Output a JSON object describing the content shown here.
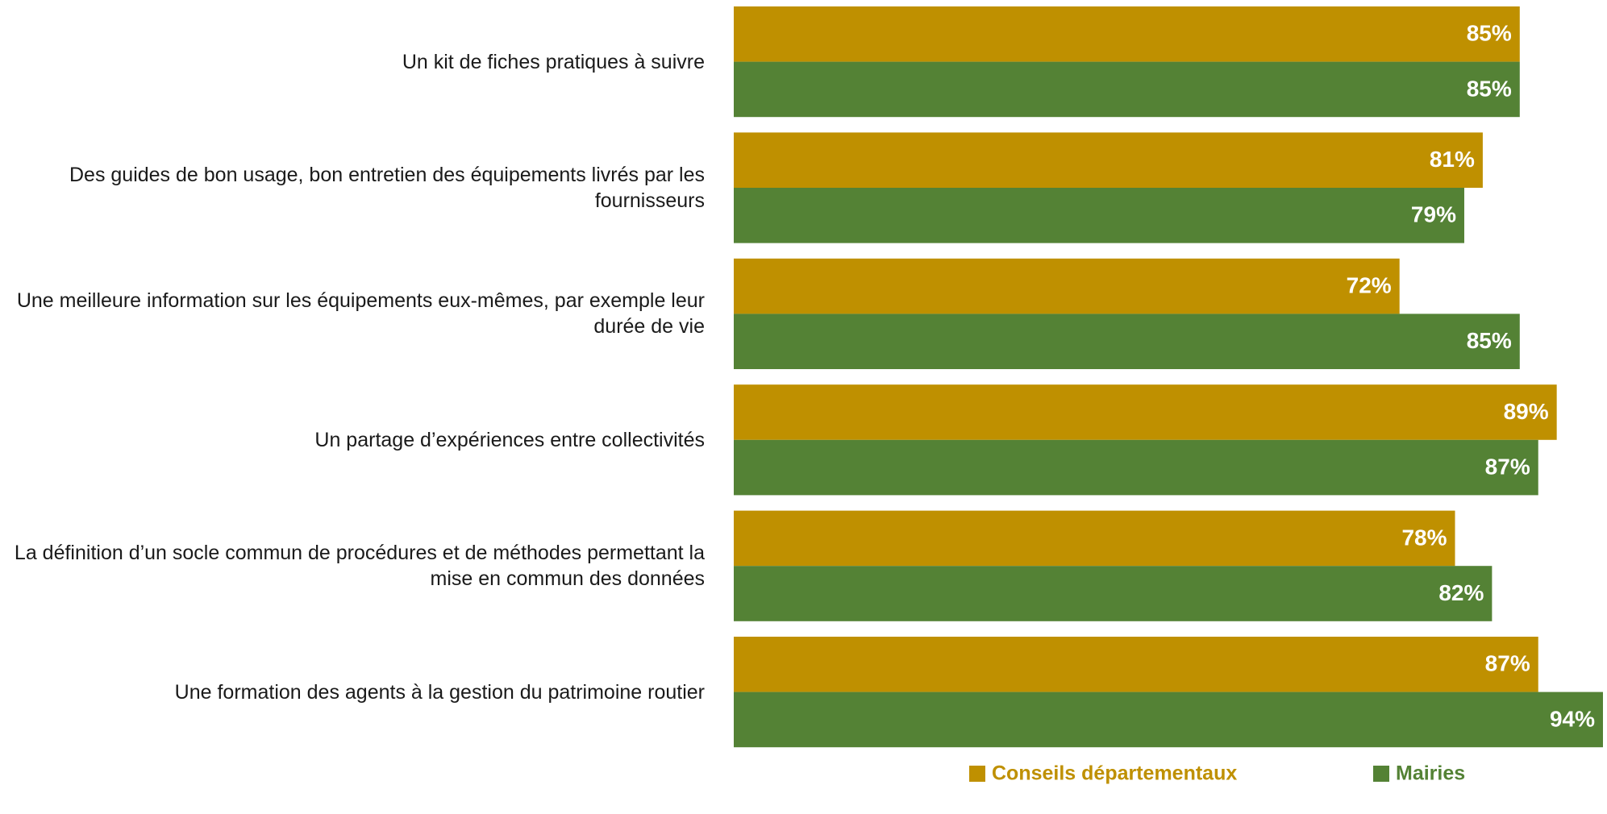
{
  "chart_data": {
    "type": "bar",
    "orientation": "horizontal",
    "categories": [
      "Un kit de fiches pratiques à suivre",
      "Des guides de bon usage, bon entretien des équipements livrés par les fournisseurs",
      "Une meilleure information sur les équipements eux-mêmes, par exemple leur durée de vie",
      "Un partage d’expériences entre collectivités",
      "La définition d’un socle commun de procédures et de méthodes permettant la mise en commun des données",
      "Une formation des agents à la gestion du patrimoine routier"
    ],
    "series": [
      {
        "name": "Conseils départementaux",
        "color": "#bf9000",
        "values": [
          85,
          81,
          72,
          89,
          78,
          87
        ],
        "value_labels": [
          "85%",
          "81%",
          "72%",
          "89%",
          "78%",
          "87%"
        ]
      },
      {
        "name": "Mairies",
        "color": "#548235",
        "values": [
          85,
          79,
          85,
          87,
          82,
          94
        ],
        "value_labels": [
          "85%",
          "79%",
          "85%",
          "87%",
          "82%",
          "94%"
        ]
      }
    ]
  }
}
